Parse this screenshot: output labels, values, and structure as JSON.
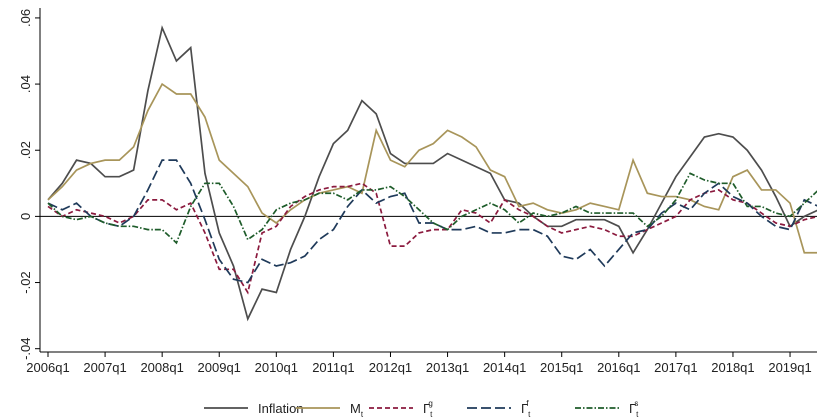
{
  "chart_data": {
    "type": "line",
    "categories": [
      "2006q1",
      null,
      null,
      null,
      "2007q1",
      null,
      null,
      null,
      "2008q1",
      null,
      null,
      null,
      "2009q1",
      null,
      null,
      null,
      "2010q1",
      null,
      null,
      null,
      "2011q1",
      null,
      null,
      null,
      "2012q1",
      null,
      null,
      null,
      "2013q1",
      null,
      null,
      null,
      "2014q1",
      null,
      null,
      null,
      "2015q1",
      null,
      null,
      null,
      "2016q1",
      null,
      null,
      null,
      "2017q1",
      null,
      null,
      null,
      "2018q1",
      null,
      null,
      null,
      "2019q1",
      null,
      null
    ],
    "ylim": [
      -0.041,
      0.063
    ],
    "yticks": [
      {
        "value": -0.04,
        "label": "-.04"
      },
      {
        "value": -0.02,
        "label": "-.02"
      },
      0,
      {
        "value": 0.02,
        "label": ".02"
      },
      {
        "value": 0.04,
        "label": ".04"
      },
      {
        "value": 0.06,
        "label": ".06"
      }
    ],
    "reference_line": 0,
    "legend": "bottom",
    "series": [
      {
        "name": "Inflation",
        "color": "#4d4d4d",
        "style": "solid",
        "values": [
          0.005,
          0.01,
          0.017,
          0.016,
          0.012,
          0.012,
          0.014,
          0.038,
          0.057,
          0.047,
          0.051,
          0.013,
          -0.005,
          -0.015,
          -0.031,
          -0.022,
          -0.023,
          -0.01,
          0.0,
          0.012,
          0.022,
          0.026,
          0.035,
          0.031,
          0.019,
          0.016,
          0.016,
          0.016,
          0.019,
          0.017,
          0.015,
          0.013,
          0.005,
          0.004,
          0.0,
          -0.003,
          -0.003,
          -0.001,
          -0.001,
          -0.001,
          -0.003,
          -0.011,
          -0.004,
          0.004,
          0.012,
          0.018,
          0.024,
          0.025,
          0.024,
          0.02,
          0.014,
          0.006,
          -0.003,
          0.0,
          0.002
        ]
      },
      {
        "name": "M",
        "sub": "t",
        "color": "#a8955a",
        "style": "solid",
        "values": [
          0.005,
          0.009,
          0.014,
          0.016,
          0.017,
          0.017,
          0.021,
          0.032,
          0.04,
          0.037,
          0.037,
          0.03,
          0.017,
          0.013,
          0.009,
          0.001,
          -0.002,
          0.002,
          0.005,
          0.007,
          0.008,
          0.009,
          0.007,
          0.026,
          0.017,
          0.015,
          0.02,
          0.022,
          0.026,
          0.024,
          0.021,
          0.014,
          0.012,
          0.003,
          0.004,
          0.002,
          0.001,
          0.002,
          0.004,
          0.003,
          0.002,
          0.017,
          0.007,
          0.006,
          0.006,
          0.005,
          0.003,
          0.002,
          0.012,
          0.014,
          0.008,
          0.008,
          0.004,
          -0.011,
          -0.011
        ]
      },
      {
        "name": "Γ",
        "sub": "t",
        "sup": "g",
        "color": "#8b1a3e",
        "style": "dash",
        "values": [
          0.003,
          0.0,
          0.002,
          0.001,
          0.0,
          -0.002,
          0.0,
          0.005,
          0.005,
          0.002,
          0.004,
          -0.005,
          -0.016,
          -0.016,
          -0.023,
          -0.005,
          -0.003,
          0.003,
          0.006,
          0.008,
          0.009,
          0.009,
          0.01,
          0.007,
          -0.009,
          -0.009,
          -0.005,
          -0.004,
          -0.004,
          0.002,
          0.001,
          -0.002,
          0.005,
          0.002,
          0.0,
          -0.003,
          -0.005,
          -0.004,
          -0.003,
          -0.004,
          -0.006,
          -0.006,
          -0.004,
          -0.002,
          0.0,
          0.005,
          0.007,
          0.008,
          0.005,
          0.004,
          0.001,
          -0.002,
          -0.003,
          -0.001,
          0.0
        ]
      },
      {
        "name": "Γ",
        "sub": "t",
        "sup": "f",
        "color": "#1f3a5a",
        "style": "longdash",
        "values": [
          0.004,
          0.002,
          0.004,
          0.0,
          -0.002,
          -0.003,
          0.0,
          0.008,
          0.017,
          0.017,
          0.01,
          -0.001,
          -0.013,
          -0.019,
          -0.02,
          -0.013,
          -0.015,
          -0.014,
          -0.012,
          -0.007,
          -0.004,
          0.003,
          0.008,
          0.004,
          0.006,
          0.007,
          -0.002,
          -0.002,
          -0.004,
          -0.004,
          -0.003,
          -0.005,
          -0.005,
          -0.004,
          -0.004,
          -0.006,
          -0.012,
          -0.013,
          -0.01,
          -0.015,
          -0.01,
          -0.005,
          -0.004,
          0.001,
          0.004,
          0.002,
          0.007,
          0.01,
          0.006,
          0.004,
          0.0,
          -0.003,
          -0.004,
          0.005,
          0.003
        ]
      },
      {
        "name": "Γ",
        "sub": "t",
        "sup": "s",
        "color": "#1e5c2a",
        "style": "dashdot",
        "values": [
          0.004,
          0.0,
          -0.001,
          0.0,
          -0.002,
          -0.003,
          -0.003,
          -0.004,
          -0.004,
          -0.008,
          0.003,
          0.01,
          0.01,
          0.003,
          -0.007,
          -0.004,
          0.002,
          0.004,
          0.005,
          0.007,
          0.007,
          0.005,
          0.008,
          0.008,
          0.009,
          0.006,
          0.002,
          -0.002,
          -0.004,
          0.0,
          0.002,
          0.004,
          0.002,
          -0.002,
          0.001,
          0.0,
          0.001,
          0.003,
          0.001,
          0.001,
          0.001,
          0.001,
          -0.003,
          0.0,
          0.005,
          0.013,
          0.011,
          0.01,
          0.01,
          0.003,
          0.003,
          0.001,
          0.0,
          0.004,
          0.008
        ]
      }
    ]
  }
}
